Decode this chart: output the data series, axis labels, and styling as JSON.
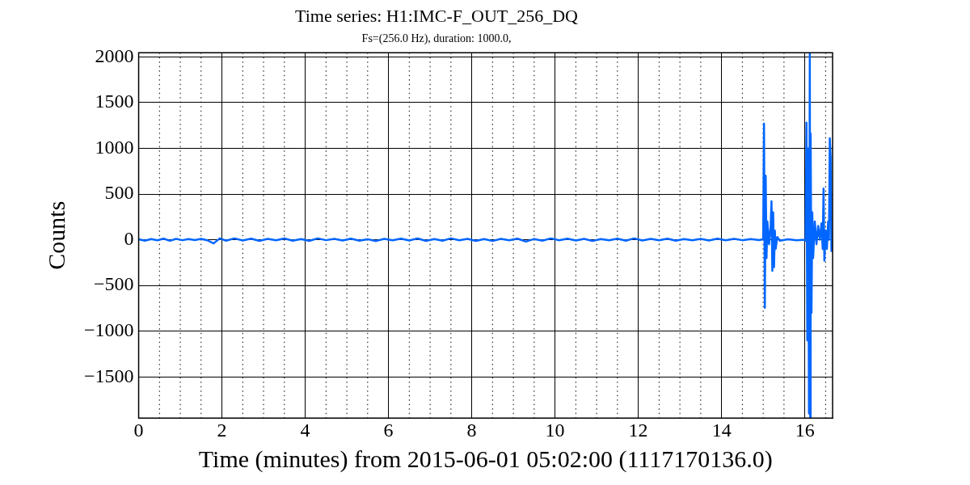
{
  "chart_data": {
    "type": "line",
    "title": "Time series: H1:IMC-F_OUT_256_DQ",
    "subtitle": "Fs=(256.0 Hz), duration: 1000.0,",
    "xlabel": "Time (minutes) from 2015-06-01 05:02:00 (1117170136.0)",
    "ylabel": "Counts",
    "x": [
      0,
      0.15,
      0.3,
      0.45,
      0.6,
      0.75,
      0.9,
      1.05,
      1.2,
      1.35,
      1.5,
      1.65,
      1.8,
      1.95,
      2.1,
      2.3,
      2.5,
      2.7,
      2.9,
      3.1,
      3.3,
      3.5,
      3.7,
      3.9,
      4.1,
      4.3,
      4.5,
      4.7,
      4.9,
      5.1,
      5.3,
      5.5,
      5.7,
      5.9,
      6.1,
      6.3,
      6.5,
      6.7,
      6.9,
      7.1,
      7.3,
      7.5,
      7.7,
      7.9,
      8.1,
      8.3,
      8.5,
      8.7,
      8.9,
      9.1,
      9.3,
      9.5,
      9.7,
      9.9,
      10.1,
      10.3,
      10.5,
      10.7,
      10.9,
      11.1,
      11.3,
      11.5,
      11.7,
      11.9,
      12.1,
      12.3,
      12.5,
      12.7,
      12.9,
      13.1,
      13.3,
      13.5,
      13.7,
      13.9,
      14.1,
      14.3,
      14.5,
      14.7,
      14.9,
      15.0,
      15.02,
      15.04,
      15.06,
      15.08,
      15.1,
      15.14,
      15.18,
      15.2,
      15.22,
      15.24,
      15.26,
      15.28,
      15.3,
      15.34,
      15.4,
      15.6,
      15.8,
      16.0,
      16.02,
      16.04,
      16.06,
      16.08,
      16.1,
      16.12,
      16.13,
      16.14,
      16.16,
      16.18,
      16.2,
      16.24,
      16.28,
      16.32,
      16.36,
      16.4,
      16.43,
      16.45,
      16.47,
      16.5,
      16.53,
      16.56,
      16.58,
      16.6,
      16.62,
      16.64,
      16.667
    ],
    "series": [
      {
        "color": "#0066ff",
        "values": [
          5,
          -10,
          8,
          -6,
          12,
          -12,
          10,
          -5,
          8,
          -4,
          10,
          -6,
          -40,
          15,
          -10,
          15,
          -8,
          12,
          -12,
          10,
          -6,
          14,
          -10,
          8,
          -12,
          15,
          -5,
          10,
          -8,
          12,
          -10,
          6,
          -14,
          10,
          -6,
          12,
          -8,
          14,
          -12,
          8,
          -10,
          15,
          -6,
          10,
          -12,
          8,
          -14,
          10,
          -6,
          12,
          -20,
          8,
          -10,
          15,
          -6,
          12,
          -8,
          10,
          -14,
          8,
          -6,
          12,
          -10,
          15,
          -8,
          10,
          -6,
          12,
          -10,
          8,
          -6,
          10,
          -8,
          12,
          -6,
          10,
          -5,
          8,
          -4,
          5,
          1270,
          -745,
          700,
          -200,
          200,
          -50,
          150,
          420,
          -340,
          300,
          -300,
          100,
          -100,
          30,
          -10,
          5,
          -5,
          0,
          -10,
          1280,
          -1100,
          1000,
          -1900,
          2040,
          -1940,
          1160,
          -800,
          300,
          -200,
          200,
          -50,
          150,
          0,
          180,
          -100,
          560,
          -230,
          100,
          -100,
          200,
          0,
          1110,
          905,
          -124,
          0
        ]
      }
    ],
    "xlim": [
      0,
      16.667
    ],
    "xticks": [
      0,
      {
        "value": 0.5,
        "label": null
      },
      {
        "value": 1,
        "label": null
      },
      {
        "value": 1.5,
        "label": null
      },
      2,
      {
        "value": 2.5,
        "label": null
      },
      {
        "value": 3,
        "label": null
      },
      {
        "value": 3.5,
        "label": null
      },
      4,
      {
        "value": 4.5,
        "label": null
      },
      {
        "value": 5,
        "label": null
      },
      {
        "value": 5.5,
        "label": null
      },
      6,
      {
        "value": 6.5,
        "label": null
      },
      {
        "value": 7,
        "label": null
      },
      {
        "value": 7.5,
        "label": null
      },
      8,
      {
        "value": 8.5,
        "label": null
      },
      {
        "value": 9,
        "label": null
      },
      {
        "value": 9.5,
        "label": null
      },
      10,
      {
        "value": 10.5,
        "label": null
      },
      {
        "value": 11,
        "label": null
      },
      {
        "value": 11.5,
        "label": null
      },
      12,
      {
        "value": 12.5,
        "label": null
      },
      {
        "value": 13,
        "label": null
      },
      {
        "value": 13.5,
        "label": null
      },
      14,
      {
        "value": 14.5,
        "label": null
      },
      {
        "value": 15,
        "label": null
      },
      {
        "value": 15.5,
        "label": null
      },
      16,
      {
        "value": 16.5,
        "label": null
      }
    ],
    "ylim": [
      -1950,
      2045
    ],
    "yticks": [
      -1500,
      -1000,
      -500,
      0,
      500,
      1000,
      1500,
      2000
    ],
    "grid": true,
    "legend": false,
    "marker": "none",
    "line_style": "solid"
  }
}
